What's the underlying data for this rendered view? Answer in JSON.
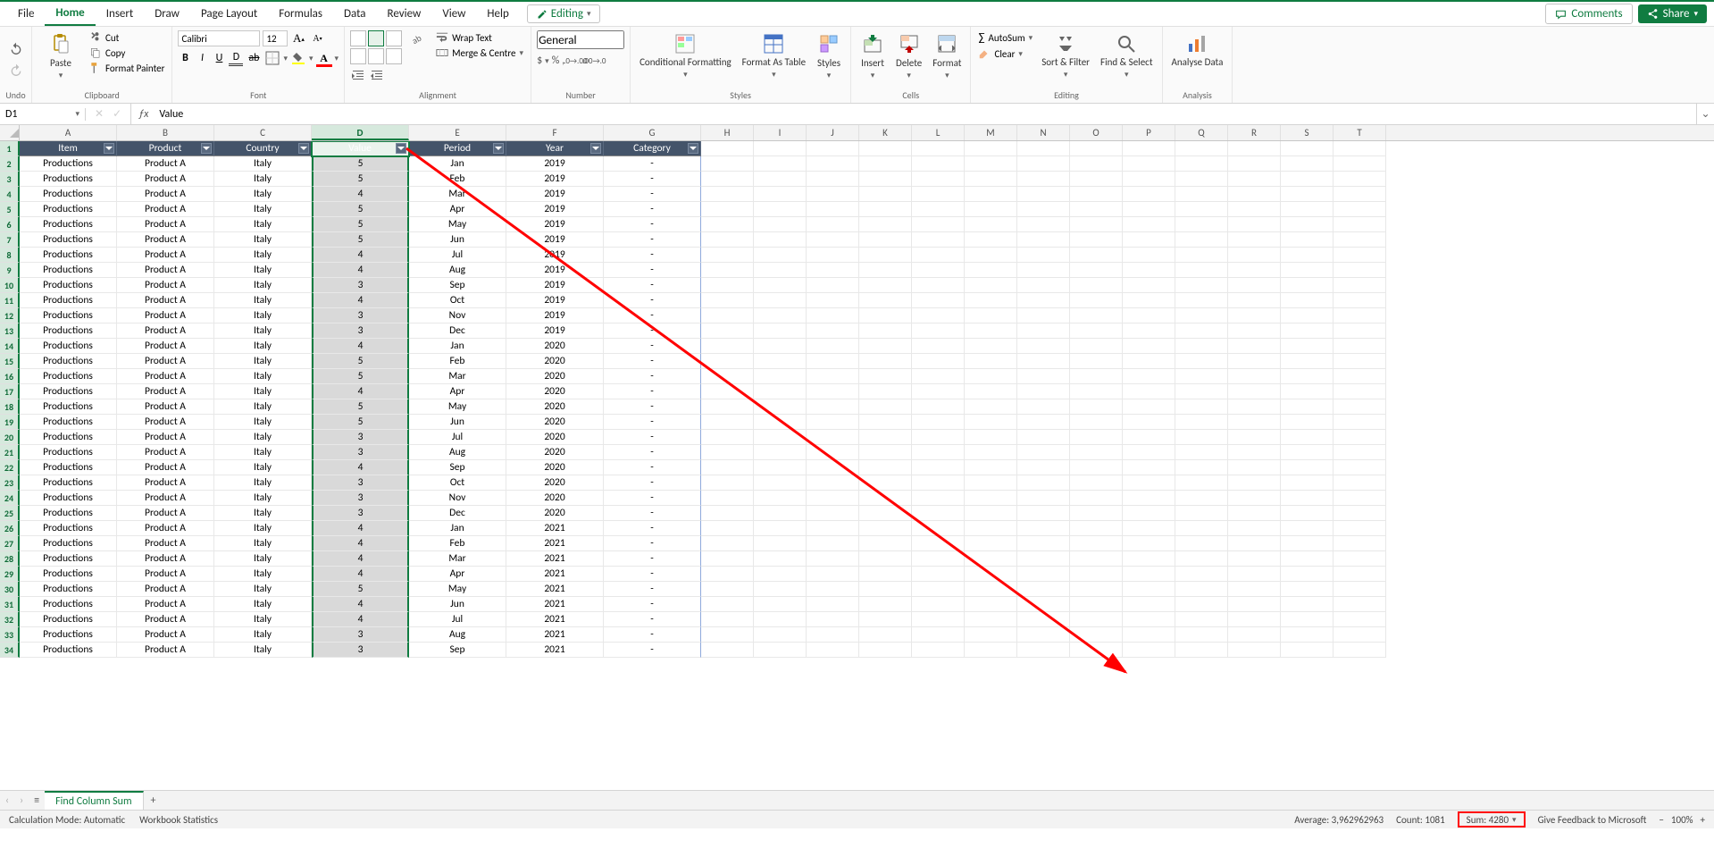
{
  "tabs": [
    "File",
    "Home",
    "Insert",
    "Draw",
    "Page Layout",
    "Formulas",
    "Data",
    "Review",
    "View",
    "Help"
  ],
  "active_tab": "Home",
  "editing_label": "Editing",
  "comments_label": "Comments",
  "share_label": "Share",
  "ribbon": {
    "undo_label": "Undo",
    "clipboard": {
      "paste": "Paste",
      "cut": "Cut",
      "copy": "Copy",
      "format_painter": "Format Painter",
      "label": "Clipboard"
    },
    "font": {
      "name": "Calibri",
      "size": "12",
      "label": "Font"
    },
    "alignment": {
      "wrap": "Wrap Text",
      "merge": "Merge & Centre",
      "label": "Alignment"
    },
    "number": {
      "format": "General",
      "label": "Number"
    },
    "styles": {
      "cond": "Conditional Formatting",
      "fat": "Format As Table",
      "styles": "Styles",
      "label": "Styles"
    },
    "cells": {
      "insert": "Insert",
      "delete": "Delete",
      "format": "Format",
      "label": "Cells"
    },
    "editing": {
      "autosum": "AutoSum",
      "clear": "Clear",
      "sort": "Sort & Filter",
      "find": "Find & Select",
      "label": "Editing"
    },
    "analysis": {
      "analyse": "Analyse Data",
      "label": "Analysis"
    }
  },
  "name_box": "D1",
  "formula_value": "Value",
  "grid": {
    "col_letters": [
      "A",
      "B",
      "C",
      "D",
      "E",
      "F",
      "G",
      "H",
      "I",
      "J",
      "K",
      "L",
      "M",
      "N",
      "O",
      "P",
      "Q",
      "R",
      "S",
      "T"
    ],
    "headers": [
      "Item",
      "Product",
      "Country",
      "Value",
      "Period",
      "Year",
      "Category"
    ],
    "rows": [
      [
        "Productions",
        "Product A",
        "Italy",
        "5",
        "Jan",
        "2019",
        "-"
      ],
      [
        "Productions",
        "Product A",
        "Italy",
        "5",
        "Feb",
        "2019",
        "-"
      ],
      [
        "Productions",
        "Product A",
        "Italy",
        "4",
        "Mar",
        "2019",
        "-"
      ],
      [
        "Productions",
        "Product A",
        "Italy",
        "5",
        "Apr",
        "2019",
        "-"
      ],
      [
        "Productions",
        "Product A",
        "Italy",
        "5",
        "May",
        "2019",
        "-"
      ],
      [
        "Productions",
        "Product A",
        "Italy",
        "5",
        "Jun",
        "2019",
        "-"
      ],
      [
        "Productions",
        "Product A",
        "Italy",
        "4",
        "Jul",
        "2019",
        "-"
      ],
      [
        "Productions",
        "Product A",
        "Italy",
        "4",
        "Aug",
        "2019",
        "-"
      ],
      [
        "Productions",
        "Product A",
        "Italy",
        "3",
        "Sep",
        "2019",
        "-"
      ],
      [
        "Productions",
        "Product A",
        "Italy",
        "4",
        "Oct",
        "2019",
        "-"
      ],
      [
        "Productions",
        "Product A",
        "Italy",
        "3",
        "Nov",
        "2019",
        "-"
      ],
      [
        "Productions",
        "Product A",
        "Italy",
        "3",
        "Dec",
        "2019",
        "-"
      ],
      [
        "Productions",
        "Product A",
        "Italy",
        "4",
        "Jan",
        "2020",
        "-"
      ],
      [
        "Productions",
        "Product A",
        "Italy",
        "5",
        "Feb",
        "2020",
        "-"
      ],
      [
        "Productions",
        "Product A",
        "Italy",
        "5",
        "Mar",
        "2020",
        "-"
      ],
      [
        "Productions",
        "Product A",
        "Italy",
        "4",
        "Apr",
        "2020",
        "-"
      ],
      [
        "Productions",
        "Product A",
        "Italy",
        "5",
        "May",
        "2020",
        "-"
      ],
      [
        "Productions",
        "Product A",
        "Italy",
        "5",
        "Jun",
        "2020",
        "-"
      ],
      [
        "Productions",
        "Product A",
        "Italy",
        "3",
        "Jul",
        "2020",
        "-"
      ],
      [
        "Productions",
        "Product A",
        "Italy",
        "3",
        "Aug",
        "2020",
        "-"
      ],
      [
        "Productions",
        "Product A",
        "Italy",
        "4",
        "Sep",
        "2020",
        "-"
      ],
      [
        "Productions",
        "Product A",
        "Italy",
        "3",
        "Oct",
        "2020",
        "-"
      ],
      [
        "Productions",
        "Product A",
        "Italy",
        "3",
        "Nov",
        "2020",
        "-"
      ],
      [
        "Productions",
        "Product A",
        "Italy",
        "3",
        "Dec",
        "2020",
        "-"
      ],
      [
        "Productions",
        "Product A",
        "Italy",
        "4",
        "Jan",
        "2021",
        "-"
      ],
      [
        "Productions",
        "Product A",
        "Italy",
        "4",
        "Feb",
        "2021",
        "-"
      ],
      [
        "Productions",
        "Product A",
        "Italy",
        "4",
        "Mar",
        "2021",
        "-"
      ],
      [
        "Productions",
        "Product A",
        "Italy",
        "4",
        "Apr",
        "2021",
        "-"
      ],
      [
        "Productions",
        "Product A",
        "Italy",
        "5",
        "May",
        "2021",
        "-"
      ],
      [
        "Productions",
        "Product A",
        "Italy",
        "4",
        "Jun",
        "2021",
        "-"
      ],
      [
        "Productions",
        "Product A",
        "Italy",
        "4",
        "Jul",
        "2021",
        "-"
      ],
      [
        "Productions",
        "Product A",
        "Italy",
        "3",
        "Aug",
        "2021",
        "-"
      ],
      [
        "Productions",
        "Product A",
        "Italy",
        "3",
        "Sep",
        "2021",
        "-"
      ]
    ],
    "selected_col_index": 3,
    "n_visible_rows": 34
  },
  "sheet_name": "Find Column Sum",
  "status": {
    "calc_mode": "Calculation Mode: Automatic",
    "wb_stats": "Workbook Statistics",
    "average": "Average: 3,962962963",
    "count": "Count: 1081",
    "sum": "Sum: 4280",
    "feedback": "Give Feedback to Microsoft",
    "zoom": "100%"
  },
  "annotation": {
    "arrow_start": [
      455,
      26
    ],
    "arrow_end": [
      1260,
      612
    ],
    "color": "#ff0000"
  }
}
